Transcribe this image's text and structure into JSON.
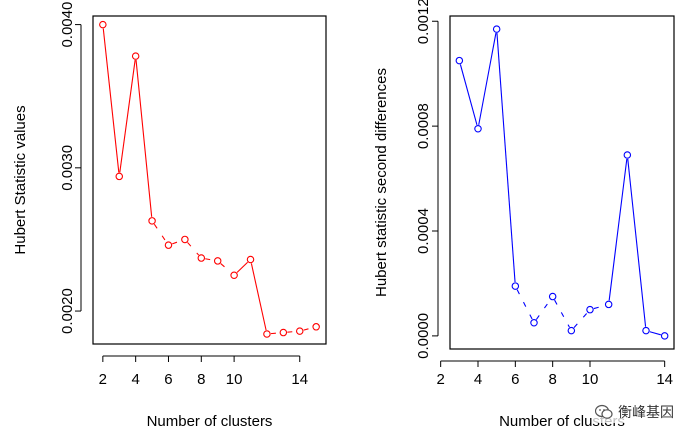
{
  "chart_data": [
    {
      "type": "line",
      "xlabel": "Number of clusters",
      "ylabel": "Hubert Statistic values",
      "color": "#ff0000",
      "x": [
        2,
        3,
        4,
        5,
        6,
        7,
        8,
        9,
        10,
        11,
        12,
        13,
        14,
        15
      ],
      "values": [
        0.004,
        0.00294,
        0.00378,
        0.00263,
        0.00246,
        0.0025,
        0.00237,
        0.00235,
        0.00225,
        0.00236,
        0.00184,
        0.00185,
        0.00186,
        0.00189
      ],
      "connected": [
        true,
        true,
        true,
        false,
        false,
        false,
        false,
        false,
        true,
        true,
        false,
        false,
        false
      ],
      "xlim": [
        1.4,
        15.6
      ],
      "ylim": [
        0.00177,
        0.00406
      ],
      "xticks": [
        2,
        4,
        6,
        8,
        10,
        14
      ],
      "yticks": [
        0.002,
        0.003,
        0.004
      ],
      "ytick_labels": [
        "0.0020",
        "0.0030",
        "0.0040"
      ]
    },
    {
      "type": "line",
      "xlabel": "Number of clusters",
      "ylabel": "Hubert statistic second differences",
      "color": "#0000ff",
      "x": [
        3,
        4,
        5,
        6,
        7,
        8,
        9,
        10,
        11,
        12,
        13,
        14
      ],
      "values": [
        0.00105,
        0.00079,
        0.00117,
        0.00019,
        5e-05,
        0.00015,
        2e-05,
        0.0001,
        0.00012,
        0.00069,
        2e-05,
        0.0
      ],
      "connected": [
        true,
        true,
        true,
        false,
        false,
        false,
        false,
        false,
        true,
        true,
        true
      ],
      "xlim": [
        2.5,
        14.5
      ],
      "ylim": [
        -5e-05,
        0.00122
      ],
      "xticks": [
        2,
        4,
        6,
        8,
        10,
        14
      ],
      "yticks": [
        0.0,
        0.0004,
        0.0008,
        0.0012
      ],
      "ytick_labels": [
        "0.0000",
        "0.0004",
        "0.0008",
        "0.0012"
      ]
    }
  ],
  "watermark": "衡峰基因"
}
